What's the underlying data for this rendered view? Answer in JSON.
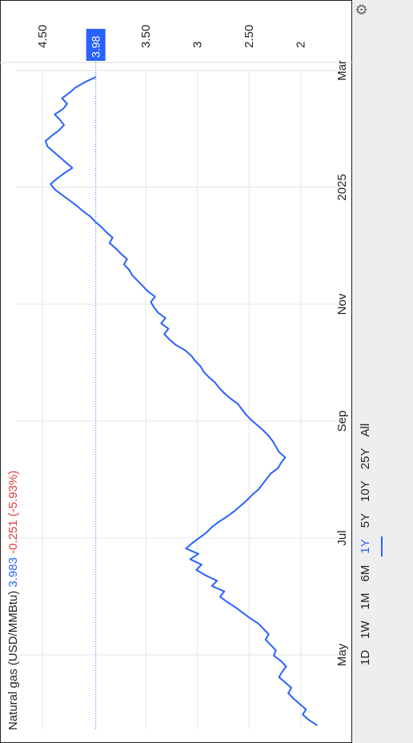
{
  "header": {
    "name": "Natural gas (USD/MMBtu)",
    "price": "3.983",
    "change": "-0.251 (-5.93%)"
  },
  "tabs": [
    {
      "label": "1D",
      "active": false
    },
    {
      "label": "1W",
      "active": false
    },
    {
      "label": "1M",
      "active": false
    },
    {
      "label": "6M",
      "active": false
    },
    {
      "label": "1Y",
      "active": true
    },
    {
      "label": "5Y",
      "active": false
    },
    {
      "label": "10Y",
      "active": false
    },
    {
      "label": "25Y",
      "active": false
    },
    {
      "label": "All",
      "active": false
    }
  ],
  "icons": {
    "settings": "gear-icon"
  },
  "colors": {
    "line": "#2962ff",
    "negative": "#e23b3b",
    "grid": "#e6e6e6"
  },
  "chart_data": {
    "type": "line",
    "title": "Natural gas (USD/MMBtu)",
    "xlabel": "",
    "ylabel": "",
    "x_tick_labels": [
      "May",
      "Jul",
      "Sep",
      "Nov",
      "2025",
      "Mar"
    ],
    "y_tick_labels": [
      "2",
      "2.50",
      "3",
      "3.50",
      "4.50"
    ],
    "y_ticks": [
      2,
      2.5,
      3,
      3.5,
      4.5
    ],
    "ylim": [
      1.75,
      4.6
    ],
    "current_price_label": "3.98",
    "current_price": 3.983,
    "series": [
      {
        "name": "",
        "values": [
          1.84,
          1.92,
          1.98,
          1.95,
          2.01,
          2.07,
          2.12,
          2.09,
          2.15,
          2.21,
          2.18,
          2.14,
          2.19,
          2.26,
          2.24,
          2.29,
          2.34,
          2.31,
          2.36,
          2.41,
          2.49,
          2.56,
          2.63,
          2.71,
          2.78,
          2.74,
          2.86,
          2.81,
          2.92,
          3.01,
          2.96,
          3.07,
          2.99,
          3.11,
          3.05,
          2.98,
          2.91,
          2.86,
          2.79,
          2.71,
          2.64,
          2.58,
          2.52,
          2.47,
          2.41,
          2.37,
          2.33,
          2.29,
          2.22,
          2.19,
          2.15,
          2.21,
          2.24,
          2.27,
          2.31,
          2.36,
          2.42,
          2.48,
          2.53,
          2.57,
          2.61,
          2.68,
          2.74,
          2.79,
          2.83,
          2.89,
          2.94,
          2.97,
          3.02,
          3.06,
          3.12,
          3.21,
          3.27,
          3.32,
          3.28,
          3.35,
          3.31,
          3.38,
          3.42,
          3.45,
          3.41,
          3.48,
          3.53,
          3.58,
          3.63,
          3.66,
          3.71,
          3.68,
          3.74,
          3.79,
          3.85,
          3.82,
          3.88,
          3.93,
          3.99,
          4.04,
          4.11,
          4.17,
          4.24,
          4.31,
          4.38,
          4.42,
          4.36,
          4.29,
          4.21,
          4.27,
          4.33,
          4.39,
          4.45,
          4.47,
          4.41,
          4.34,
          4.29,
          4.33,
          4.38,
          4.3,
          4.26,
          4.31,
          4.24,
          4.18,
          4.09,
          3.98
        ]
      }
    ]
  }
}
